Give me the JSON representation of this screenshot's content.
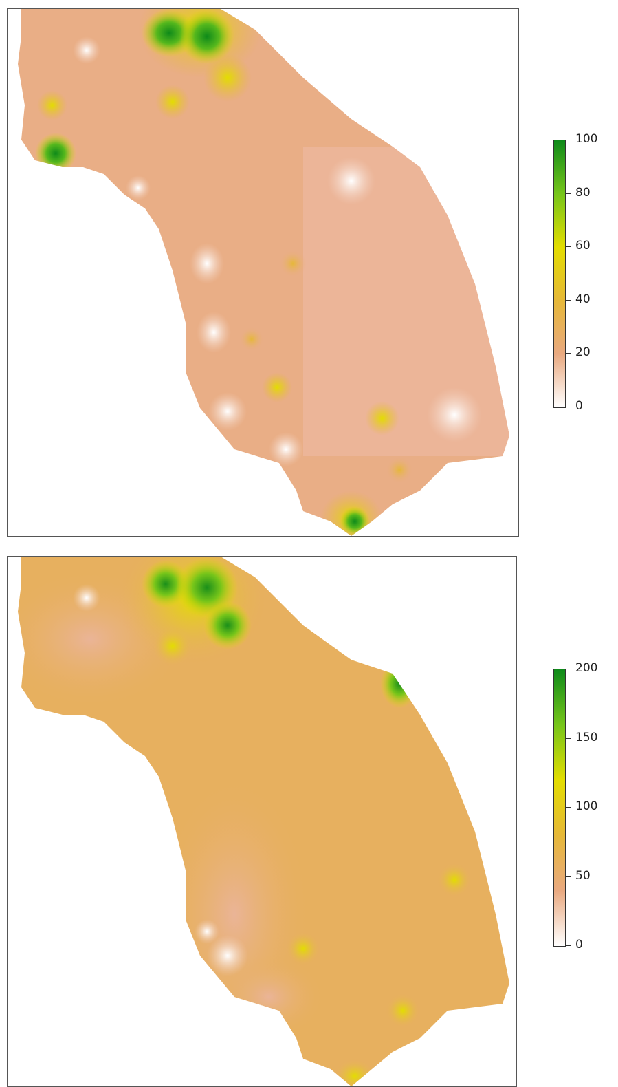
{
  "maps": [
    {
      "legend": {
        "ticks": [
          "100",
          "80",
          "60",
          "40",
          "20",
          "0"
        ],
        "min": 0,
        "max": 100,
        "colors": [
          "#ffffff",
          "#e9a980",
          "#e6b838",
          "#e3dd00",
          "#76c51a",
          "#0e8a1a"
        ]
      }
    },
    {
      "legend": {
        "ticks": [
          "200",
          "150",
          "100",
          "50",
          "0"
        ],
        "min": 0,
        "max": 200,
        "colors": [
          "#ffffff",
          "#e9a980",
          "#e6b838",
          "#e3dd00",
          "#76c51a",
          "#0e8a1a"
        ]
      }
    }
  ],
  "colors": {
    "base_top": "#e9ae86",
    "base_bottom": "#e7b05f",
    "frame": "#555555"
  }
}
